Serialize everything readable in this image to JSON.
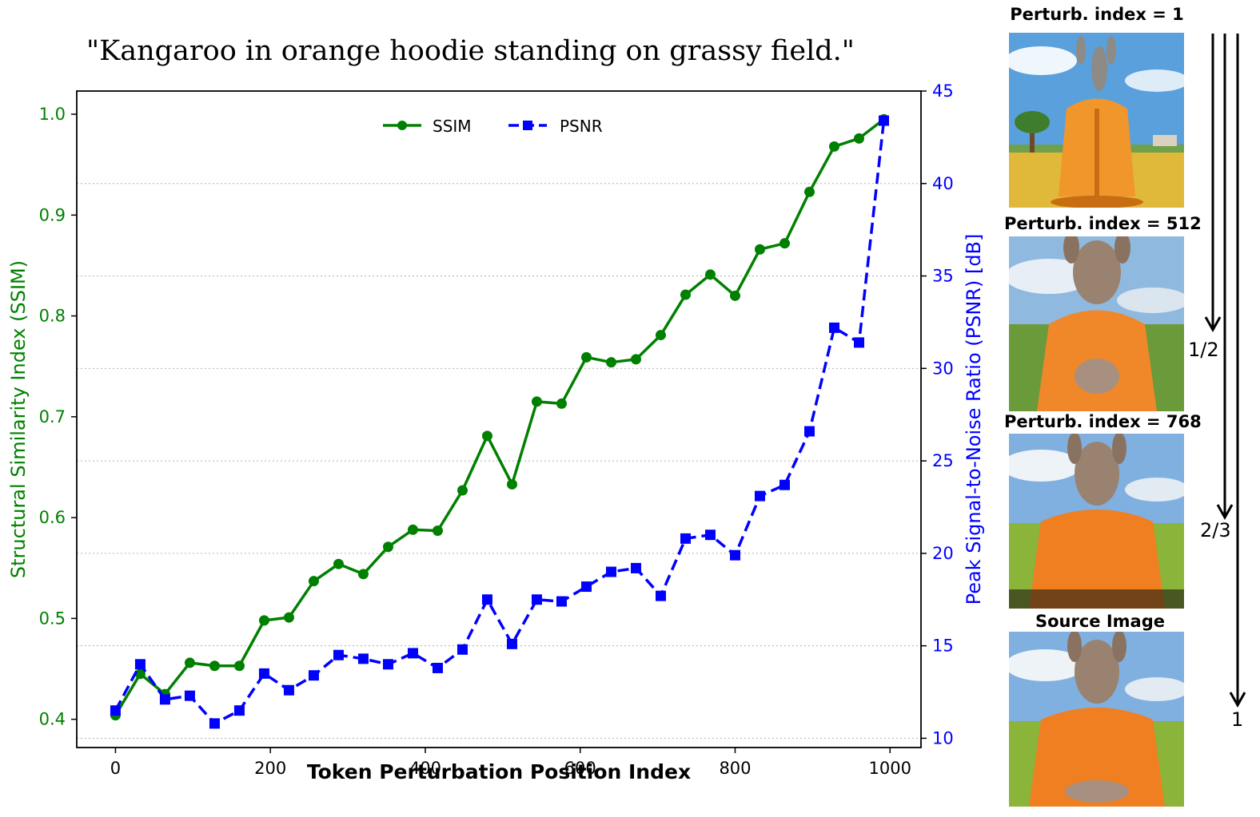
{
  "prompt": "\"Kangaroo in orange hoodie standing on grassy field.\"",
  "chart_data": {
    "type": "line",
    "title": "",
    "xlabel": "Token Perturbation Position Index",
    "ylabel_left": "Structural Similarity Index (SSIM)",
    "ylabel_right": "Peak Signal-to-Noise Ratio (PSNR) [dB]",
    "xlim": [
      -50,
      1040
    ],
    "ylim_left": [
      0.372,
      1.023
    ],
    "ylim_right": [
      9.5,
      45
    ],
    "x_ticks": [
      0,
      200,
      400,
      600,
      800,
      1000
    ],
    "y_ticks_left": [
      0.4,
      0.5,
      0.6,
      0.7,
      0.8,
      0.9,
      1.0
    ],
    "y_ticks_right": [
      10,
      15,
      20,
      25,
      30,
      35,
      40,
      45
    ],
    "grid": "horizontal dotted at right-axis ticks",
    "legend_position": "top-center",
    "x": [
      0,
      32,
      64,
      96,
      128,
      160,
      192,
      224,
      256,
      288,
      320,
      352,
      384,
      416,
      448,
      480,
      512,
      544,
      576,
      608,
      640,
      672,
      704,
      736,
      768,
      800,
      832,
      864,
      896,
      928,
      960,
      992
    ],
    "series": [
      {
        "name": "SSIM",
        "axis": "left",
        "color": "#008000",
        "style": "solid",
        "marker": "circle",
        "values": [
          0.404,
          0.445,
          0.425,
          0.456,
          0.453,
          0.453,
          0.498,
          0.501,
          0.537,
          0.554,
          0.544,
          0.571,
          0.588,
          0.587,
          0.627,
          0.681,
          0.633,
          0.715,
          0.713,
          0.759,
          0.754,
          0.757,
          0.781,
          0.821,
          0.841,
          0.82,
          0.866,
          0.872,
          0.923,
          0.968,
          0.976,
          0.995
        ]
      },
      {
        "name": "PSNR",
        "axis": "right",
        "color": "#0000ff",
        "style": "dashed",
        "marker": "square",
        "values": [
          11.5,
          14.0,
          12.1,
          12.3,
          10.8,
          11.5,
          13.5,
          12.6,
          13.4,
          14.5,
          14.3,
          14.0,
          14.6,
          13.8,
          14.8,
          17.5,
          15.1,
          17.5,
          17.4,
          18.2,
          19.0,
          19.2,
          17.7,
          20.8,
          21.0,
          19.9,
          23.1,
          23.7,
          26.6,
          32.2,
          31.4,
          43.4
        ]
      }
    ]
  },
  "panels": [
    {
      "label": "Perturb. index = 1"
    },
    {
      "label": "Perturb. index = 512"
    },
    {
      "label": "Perturb. index = 768"
    },
    {
      "label": "Source Image"
    }
  ],
  "fractions": [
    "1/2",
    "2/3",
    "1"
  ],
  "colors": {
    "ssim": "#008000",
    "psnr": "#0000ff",
    "hoodie": "#f0882a",
    "fur": "#a08873",
    "sky": "#8fb9de",
    "grass": "#5f9a2a"
  }
}
